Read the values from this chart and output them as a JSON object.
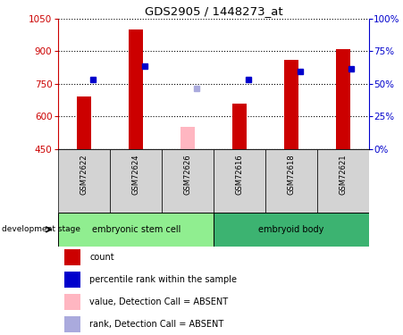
{
  "title": "GDS2905 / 1448273_at",
  "samples": [
    "GSM72622",
    "GSM72624",
    "GSM72626",
    "GSM72616",
    "GSM72618",
    "GSM72621"
  ],
  "group_colors": {
    "embryonic stem cell": "#90ee90",
    "embryoid body": "#3cb371"
  },
  "red_bars": [
    690,
    1000,
    null,
    660,
    860,
    910
  ],
  "pink_bars": [
    null,
    null,
    550,
    null,
    null,
    null
  ],
  "blue_markers": [
    770,
    830,
    null,
    770,
    805,
    820
  ],
  "lilac_markers": [
    null,
    null,
    730,
    null,
    null,
    null
  ],
  "ylim_left": [
    450,
    1050
  ],
  "ylim_right": [
    0,
    100
  ],
  "yticks_left": [
    450,
    600,
    750,
    900,
    1050
  ],
  "yticks_right": [
    0,
    25,
    50,
    75,
    100
  ],
  "red_color": "#cc0000",
  "pink_color": "#ffb6c1",
  "blue_color": "#0000cc",
  "lilac_color": "#aaaadd",
  "legend_items": [
    {
      "label": "count",
      "color": "#cc0000"
    },
    {
      "label": "percentile rank within the sample",
      "color": "#0000cc"
    },
    {
      "label": "value, Detection Call = ABSENT",
      "color": "#ffb6c1"
    },
    {
      "label": "rank, Detection Call = ABSENT",
      "color": "#aaaadd"
    }
  ]
}
